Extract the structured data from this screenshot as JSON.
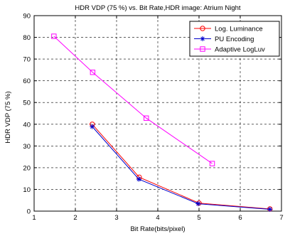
{
  "chart_data": {
    "type": "line",
    "title": "HDR VDP (75 %) vs. Bit Rate,HDR image: Atrium Night",
    "xlabel": "Bit Rate(bits/pixel)",
    "ylabel": "HDR VDP (75 %)",
    "xlim": [
      1,
      7
    ],
    "ylim": [
      0,
      90
    ],
    "xticks": [
      "1",
      "2",
      "3",
      "4",
      "5",
      "6",
      "7"
    ],
    "yticks": [
      "0",
      "10",
      "20",
      "30",
      "40",
      "50",
      "60",
      "70",
      "80",
      "90"
    ],
    "grid": true,
    "grid_style": "dashed",
    "legend_position": "top-right",
    "series": [
      {
        "name": "Log. Luminance",
        "color": "#ff0000",
        "marker": "circle",
        "points": [
          [
            2.41,
            40.0
          ],
          [
            3.55,
            15.6
          ],
          [
            5.0,
            3.7
          ],
          [
            6.72,
            1.0
          ]
        ]
      },
      {
        "name": "PU Encoding",
        "color": "#0000cc",
        "marker": "star",
        "points": [
          [
            2.41,
            38.9
          ],
          [
            3.54,
            14.7
          ],
          [
            4.98,
            3.4
          ],
          [
            6.72,
            0.8
          ]
        ]
      },
      {
        "name": "Adaptive LogLuv",
        "color": "#ff00ff",
        "marker": "square",
        "points": [
          [
            1.48,
            80.5
          ],
          [
            2.42,
            63.9
          ],
          [
            3.72,
            42.8
          ],
          [
            5.32,
            21.9
          ]
        ]
      }
    ]
  }
}
